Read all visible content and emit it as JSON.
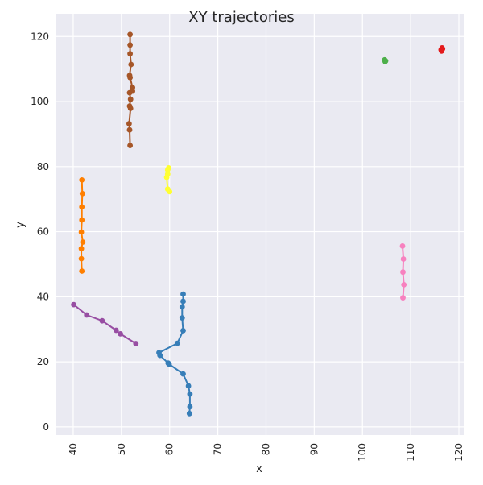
{
  "chart_data": {
    "type": "line",
    "title": "XY trajectories",
    "xlabel": "x",
    "ylabel": "y",
    "xlim": [
      36.5,
      121
    ],
    "ylim": [
      -2.5,
      127
    ],
    "xticks": [
      40,
      50,
      60,
      70,
      80,
      90,
      100,
      110,
      120
    ],
    "yticks": [
      0,
      20,
      40,
      60,
      80,
      100,
      120
    ],
    "xtick_labels": [
      "40",
      "50",
      "60",
      "70",
      "80",
      "90",
      "100",
      "110",
      "120"
    ],
    "ytick_labels": [
      "0",
      "20",
      "40",
      "60",
      "80",
      "100",
      "120"
    ],
    "grid": true,
    "background": "#eaeaf2",
    "grid_color": "#ffffff",
    "series": [
      {
        "color": "#a65628",
        "x": [
          51.8,
          51.8,
          51.8,
          52.0,
          51.7,
          51.8,
          52.3,
          52.3,
          51.7,
          51.9,
          51.7,
          51.9,
          51.6,
          51.7,
          51.8
        ],
        "y": [
          120.6,
          117.4,
          114.7,
          111.4,
          108.0,
          107.4,
          104.3,
          103.2,
          102.7,
          100.7,
          98.6,
          97.9,
          93.2,
          91.3,
          86.5
        ]
      },
      {
        "color": "#ff7f00",
        "x": [
          41.8,
          41.9,
          41.8,
          41.8,
          41.7,
          42.0,
          41.7,
          41.7,
          41.8
        ],
        "y": [
          75.9,
          71.7,
          67.6,
          63.6,
          59.9,
          56.8,
          54.8,
          51.7,
          47.9
        ]
      },
      {
        "color": "#ffff33",
        "x": [
          59.8,
          59.6,
          59.6,
          59.4,
          59.6,
          60.0
        ],
        "y": [
          79.6,
          79.0,
          77.7,
          76.7,
          73.1,
          72.3
        ]
      },
      {
        "color": "#984ea3",
        "x": [
          40.1,
          42.8,
          46.0,
          48.9,
          49.8,
          53.0
        ],
        "y": [
          37.6,
          34.4,
          32.6,
          29.7,
          28.6,
          25.6
        ]
      },
      {
        "color": "#377eb8",
        "x": [
          62.8,
          62.8,
          62.6,
          62.6,
          62.8,
          61.6,
          57.8,
          58.0,
          59.7,
          59.9,
          62.8,
          63.9,
          64.2,
          64.2,
          64.1
        ],
        "y": [
          40.8,
          38.6,
          36.9,
          33.5,
          29.6,
          25.7,
          22.8,
          22.0,
          19.6,
          19.3,
          16.3,
          12.6,
          10.1,
          6.2,
          4.1
        ]
      },
      {
        "color": "#f781bf",
        "x": [
          108.3,
          108.5,
          108.4,
          108.6,
          108.4
        ],
        "y": [
          55.6,
          51.6,
          47.6,
          43.7,
          39.7
        ]
      },
      {
        "color": "#4daf4a",
        "x": [
          104.6,
          104.8,
          104.7
        ],
        "y": [
          112.8,
          112.5,
          112.3
        ]
      },
      {
        "color": "#e41a1c",
        "x": [
          116.4,
          116.6,
          116.3,
          116.5
        ],
        "y": [
          115.5,
          116.2,
          115.9,
          116.5
        ]
      }
    ]
  }
}
